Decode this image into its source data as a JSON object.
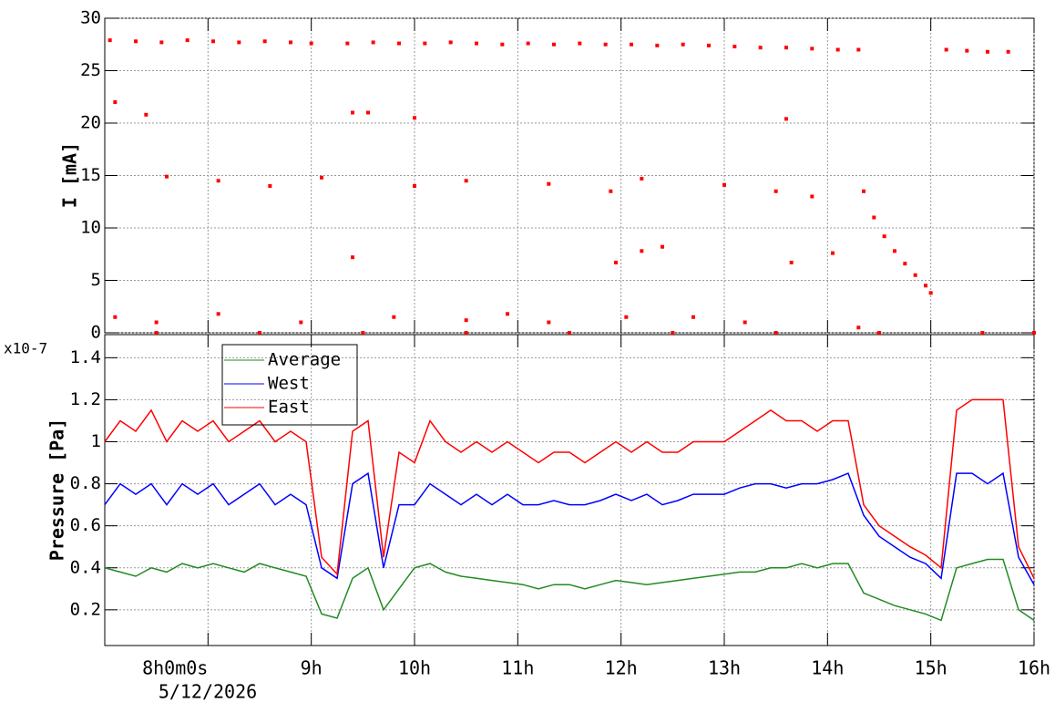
{
  "chart_data": [
    {
      "type": "scatter",
      "ylabel": "I [mA]",
      "color": "#ff0000",
      "grid": true,
      "xlim": [
        7,
        16
      ],
      "ylim": [
        0,
        30
      ],
      "yticks": [
        0,
        5,
        10,
        15,
        20,
        25,
        30
      ],
      "x": [
        7.05,
        7.3,
        7.55,
        7.8,
        8.05,
        8.3,
        8.55,
        8.8,
        9.0,
        9.35,
        9.6,
        9.85,
        10.1,
        10.35,
        10.6,
        10.85,
        11.1,
        11.35,
        11.6,
        11.85,
        12.1,
        12.35,
        12.6,
        12.85,
        13.1,
        13.35,
        13.6,
        13.85,
        14.1,
        14.3,
        14.35,
        14.45,
        14.55,
        14.65,
        14.75,
        14.85,
        14.95,
        15.0,
        15.15,
        15.35,
        15.55,
        15.75,
        7.1,
        7.4,
        9.4,
        9.55,
        10.0,
        11.95,
        12.2,
        12.4,
        13.6,
        13.65,
        14.05,
        9.4,
        7.6,
        8.1,
        8.6,
        9.1,
        10.0,
        10.5,
        11.3,
        11.9,
        12.2,
        13.0,
        13.5,
        13.85,
        7.1,
        7.5,
        8.1,
        8.9,
        9.8,
        10.5,
        10.9,
        11.3,
        12.05,
        12.7,
        13.2,
        14.3,
        7.5,
        8.5,
        9.5,
        10.5,
        11.5,
        12.5,
        13.5,
        14.5,
        15.5,
        16.0
      ],
      "values": [
        27.9,
        27.8,
        27.7,
        27.9,
        27.8,
        27.7,
        27.8,
        27.7,
        27.6,
        27.6,
        27.7,
        27.6,
        27.6,
        27.7,
        27.6,
        27.5,
        27.6,
        27.5,
        27.6,
        27.5,
        27.5,
        27.4,
        27.5,
        27.4,
        27.3,
        27.2,
        27.2,
        27.1,
        27.0,
        27.0,
        13.5,
        11.0,
        9.2,
        7.8,
        6.6,
        5.5,
        4.5,
        3.8,
        27.0,
        26.9,
        26.8,
        26.8,
        22,
        20.8,
        21,
        21,
        20.5,
        6.7,
        7.8,
        8.2,
        20.4,
        6.7,
        7.6,
        7.2,
        14.9,
        14.5,
        14,
        14.8,
        14,
        14.5,
        14.2,
        13.5,
        14.7,
        14.1,
        13.5,
        13,
        1.5,
        1,
        1.8,
        1,
        1.5,
        1.2,
        1.8,
        1.0,
        1.5,
        1.5,
        1,
        0.5,
        0,
        0,
        0,
        0,
        0,
        0,
        0,
        0,
        0,
        0
      ]
    },
    {
      "type": "line",
      "ylabel": "Pressure [Pa]",
      "y_multiplier": "x10-7",
      "date_label": "5/12/2026",
      "grid": true,
      "legend": "upper left",
      "xlim": [
        7,
        16
      ],
      "ylim": [
        0.03,
        1.51
      ],
      "yticks": [
        0.2,
        0.4,
        0.6,
        0.8,
        1,
        1.2,
        1.4
      ],
      "xticks": [
        {
          "value": 8,
          "label": "8h0m0s"
        },
        {
          "value": 9,
          "label": "9h"
        },
        {
          "value": 10,
          "label": "10h"
        },
        {
          "value": 11,
          "label": "11h"
        },
        {
          "value": 12,
          "label": "12h"
        },
        {
          "value": 13,
          "label": "13h"
        },
        {
          "value": 14,
          "label": "14h"
        },
        {
          "value": 15,
          "label": "15h"
        },
        {
          "value": 16,
          "label": "16h"
        }
      ],
      "x": [
        7,
        7.15,
        7.3,
        7.45,
        7.6,
        7.75,
        7.9,
        8.05,
        8.2,
        8.35,
        8.5,
        8.65,
        8.8,
        8.95,
        9.1,
        9.25,
        9.4,
        9.55,
        9.7,
        9.85,
        10,
        10.15,
        10.3,
        10.45,
        10.6,
        10.75,
        10.9,
        11.05,
        11.2,
        11.35,
        11.5,
        11.65,
        11.8,
        11.95,
        12.1,
        12.25,
        12.4,
        12.55,
        12.7,
        12.85,
        13,
        13.15,
        13.3,
        13.45,
        13.6,
        13.75,
        13.9,
        14.05,
        14.2,
        14.35,
        14.5,
        14.65,
        14.8,
        14.95,
        15.1,
        15.25,
        15.4,
        15.55,
        15.7,
        15.85,
        16
      ],
      "series": [
        {
          "name": "Average",
          "color": "#228b22",
          "values": [
            0.4,
            0.38,
            0.36,
            0.4,
            0.38,
            0.42,
            0.4,
            0.42,
            0.4,
            0.38,
            0.42,
            0.4,
            0.38,
            0.36,
            0.18,
            0.16,
            0.35,
            0.4,
            0.2,
            0.3,
            0.4,
            0.42,
            0.38,
            0.36,
            0.35,
            0.34,
            0.33,
            0.32,
            0.3,
            0.32,
            0.32,
            0.3,
            0.32,
            0.34,
            0.33,
            0.32,
            0.33,
            0.34,
            0.35,
            0.36,
            0.37,
            0.38,
            0.38,
            0.4,
            0.4,
            0.42,
            0.4,
            0.42,
            0.42,
            0.28,
            0.25,
            0.22,
            0.2,
            0.18,
            0.15,
            0.4,
            0.42,
            0.44,
            0.44,
            0.2,
            0.15
          ]
        },
        {
          "name": "West",
          "color": "#0000ff",
          "values": [
            0.7,
            0.8,
            0.75,
            0.8,
            0.7,
            0.8,
            0.75,
            0.8,
            0.7,
            0.75,
            0.8,
            0.7,
            0.75,
            0.7,
            0.4,
            0.35,
            0.8,
            0.85,
            0.4,
            0.7,
            0.7,
            0.8,
            0.75,
            0.7,
            0.75,
            0.7,
            0.75,
            0.7,
            0.7,
            0.72,
            0.7,
            0.7,
            0.72,
            0.75,
            0.72,
            0.75,
            0.7,
            0.72,
            0.75,
            0.75,
            0.75,
            0.78,
            0.8,
            0.8,
            0.78,
            0.8,
            0.8,
            0.82,
            0.85,
            0.65,
            0.55,
            0.5,
            0.45,
            0.42,
            0.35,
            0.85,
            0.85,
            0.8,
            0.85,
            0.45,
            0.32
          ]
        },
        {
          "name": "East",
          "color": "#ff0000",
          "values": [
            1.0,
            1.1,
            1.05,
            1.15,
            1.0,
            1.1,
            1.05,
            1.1,
            1.0,
            1.05,
            1.1,
            1.0,
            1.05,
            1.0,
            0.45,
            0.37,
            1.05,
            1.1,
            0.45,
            0.95,
            0.9,
            1.1,
            1.0,
            0.95,
            1.0,
            0.95,
            1.0,
            0.95,
            0.9,
            0.95,
            0.95,
            0.9,
            0.95,
            1.0,
            0.95,
            1.0,
            0.95,
            0.95,
            1.0,
            1.0,
            1.0,
            1.05,
            1.1,
            1.15,
            1.1,
            1.1,
            1.05,
            1.1,
            1.1,
            0.7,
            0.6,
            0.55,
            0.5,
            0.46,
            0.4,
            1.15,
            1.2,
            1.2,
            1.2,
            0.5,
            0.35
          ]
        }
      ]
    }
  ]
}
